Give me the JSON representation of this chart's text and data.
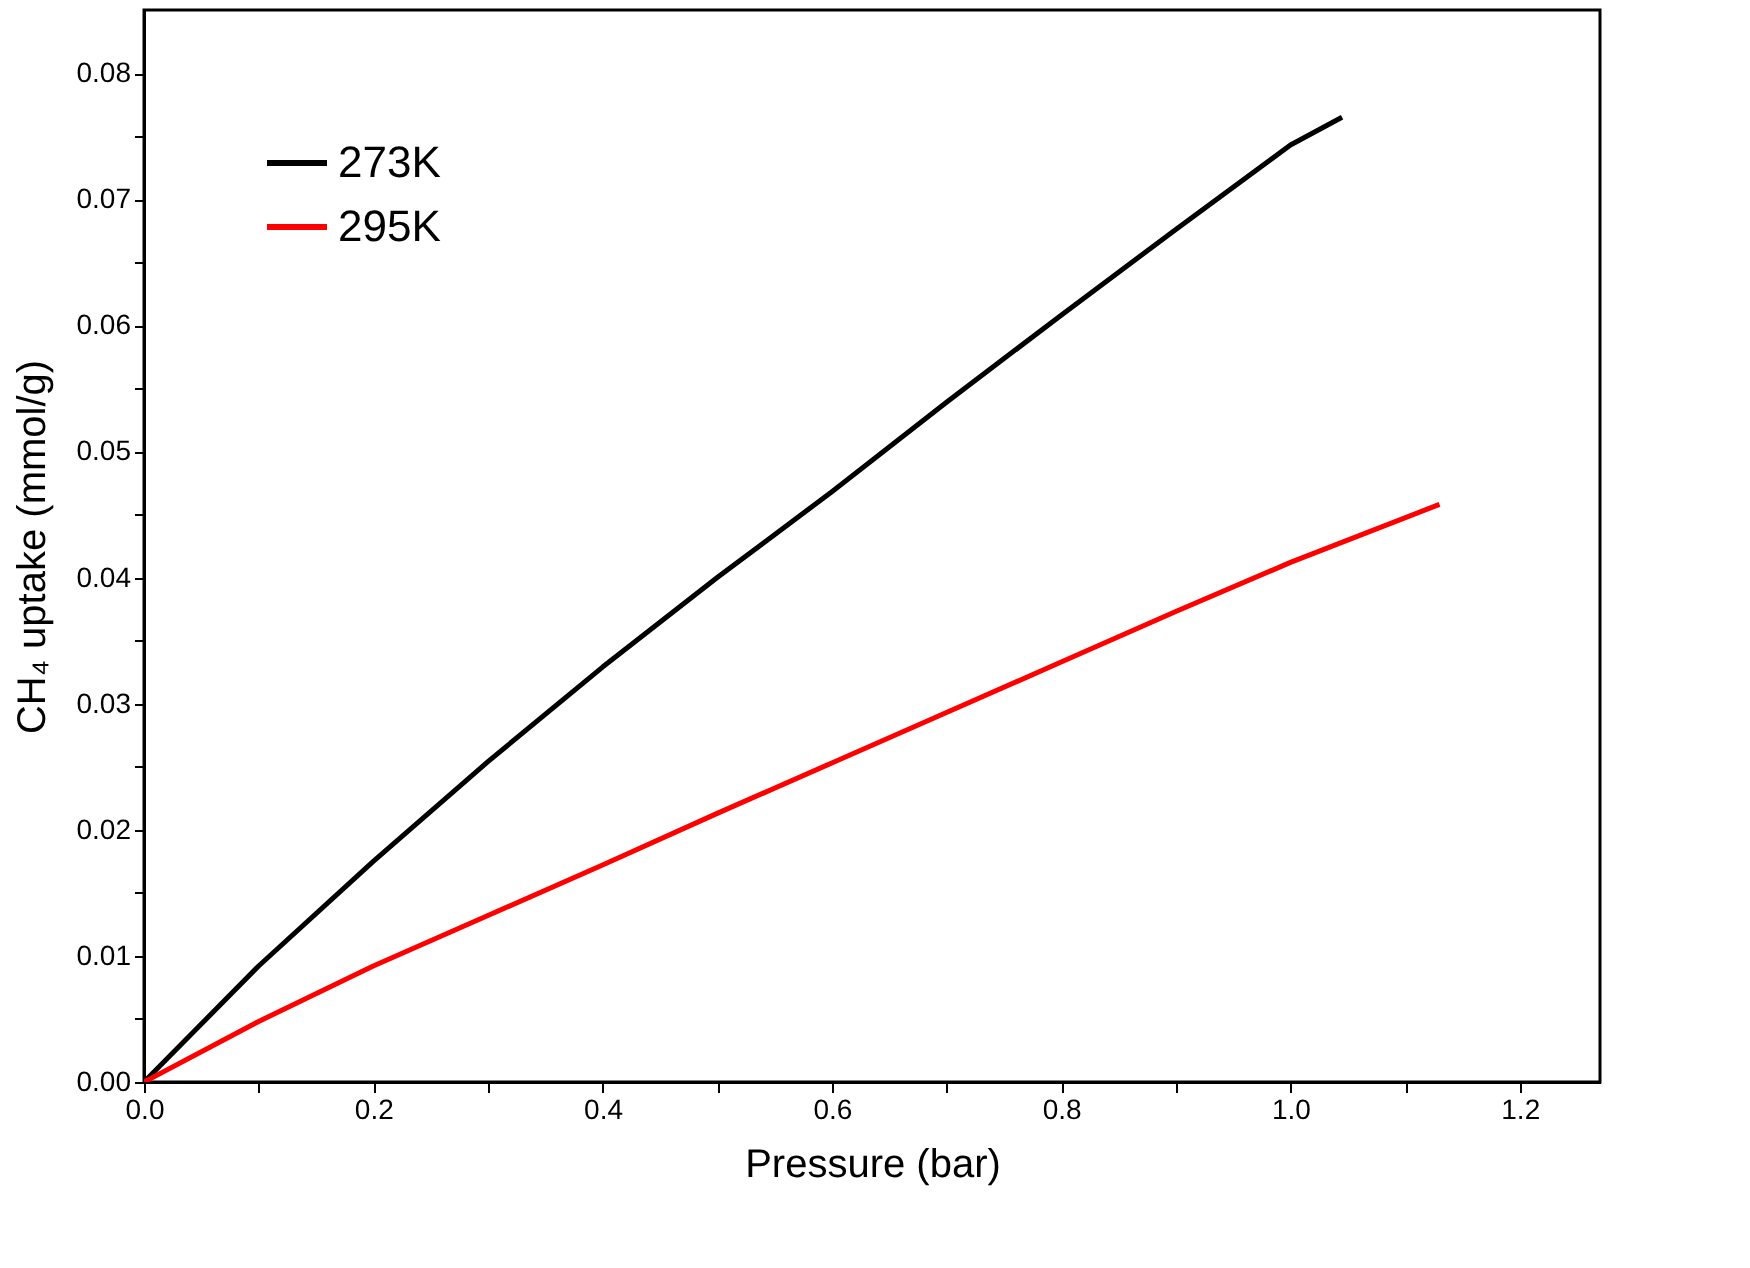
{
  "chart_data": {
    "type": "line",
    "xlabel": "Pressure (bar)",
    "ylabel": "CH₄ uptake (mmol/g)",
    "xlim": [
      0,
      1.27
    ],
    "xticks": [
      {
        "value": 0,
        "label": "0.0"
      },
      {
        "value": 0.1,
        "label": null
      },
      0.2,
      {
        "value": 0.3,
        "label": null
      },
      0.4,
      {
        "value": 0.5,
        "label": null
      },
      0.6,
      {
        "value": 0.7,
        "label": null
      },
      0.8,
      {
        "value": 0.9,
        "label": null
      },
      {
        "value": 1,
        "label": "1.0"
      },
      {
        "value": 1.1,
        "label": null
      },
      1.2
    ],
    "ylim": [
      0,
      0.085
    ],
    "yticks": [
      {
        "value": 0,
        "label": "0.00"
      },
      {
        "value": 0.005,
        "label": null
      },
      0.01,
      {
        "value": 0.015,
        "label": null
      },
      0.02,
      {
        "value": 0.025,
        "label": null
      },
      0.03,
      {
        "value": 0.035,
        "label": null
      },
      0.04,
      {
        "value": 0.045,
        "label": null
      },
      0.05,
      {
        "value": 0.055,
        "label": null
      },
      0.06,
      {
        "value": 0.065,
        "label": null
      },
      0.07,
      {
        "value": 0.075,
        "label": null
      },
      0.08
    ],
    "grid": false,
    "legend": "top left",
    "line_style": "solid",
    "marker": "none",
    "series": [
      {
        "name": "273K",
        "color": "#000000",
        "x": [
          0,
          0.1,
          0.2,
          0.3,
          0.4,
          0.5,
          0.6,
          0.7,
          0.8,
          0.9,
          1.0,
          1.045
        ],
        "values": [
          0,
          0.0092,
          0.0175,
          0.0254,
          0.0329,
          0.04,
          0.0468,
          0.0539,
          0.0608,
          0.0676,
          0.0743,
          0.0765
        ]
      },
      {
        "name": "295K",
        "color": "#ff0000",
        "x": [
          0,
          0.1,
          0.2,
          0.3,
          0.4,
          0.5,
          0.6,
          0.7,
          0.8,
          0.9,
          1.0,
          1.13
        ],
        "values": [
          0,
          0.0048,
          0.0092,
          0.0132,
          0.0172,
          0.0213,
          0.0253,
          0.0293,
          0.0333,
          0.0373,
          0.0412,
          0.0458
        ]
      }
    ]
  }
}
